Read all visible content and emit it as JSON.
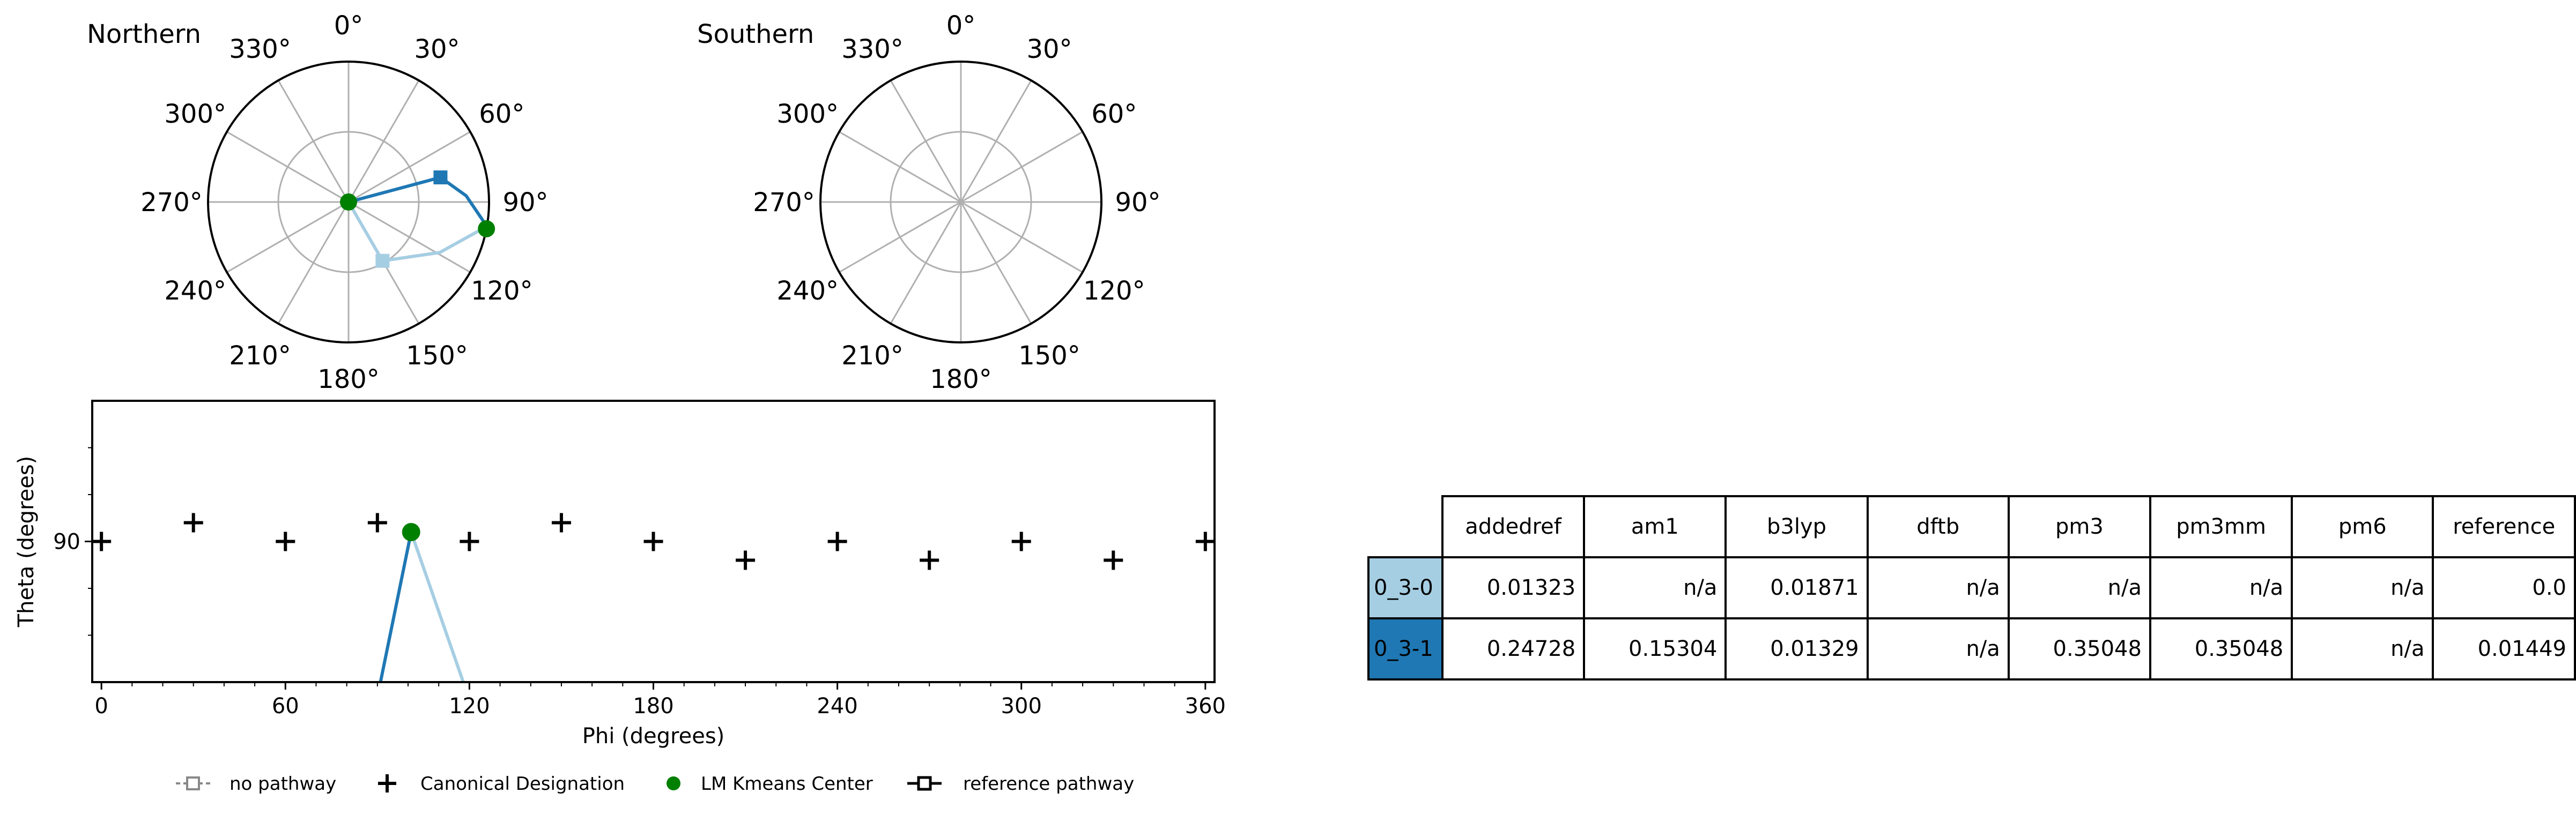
{
  "polar_plots": [
    {
      "title": "Northern",
      "angle_labels": [
        "0°",
        "30°",
        "60°",
        "90°",
        "120°",
        "150°",
        "180°",
        "210°",
        "240°",
        "270°",
        "300°",
        "330°"
      ]
    },
    {
      "title": "Southern",
      "angle_labels": [
        "0°",
        "30°",
        "60°",
        "90°",
        "120°",
        "150°",
        "180°",
        "210°",
        "240°",
        "270°",
        "300°",
        "330°"
      ]
    }
  ],
  "chart_data": [
    {
      "type": "scatter",
      "title": "Northern",
      "projection": "polar",
      "angle_unit": "degrees",
      "series": [
        {
          "name": "0_3-0",
          "color": "#a6cee3",
          "points": [
            {
              "phi": 100,
              "theta": 0
            },
            {
              "phi": 150,
              "theta": 30
            },
            {
              "phi": 119,
              "theta": 46
            },
            {
              "phi": 100,
              "theta": 62
            }
          ]
        },
        {
          "name": "0_3-1",
          "color": "#1f78b4",
          "points": [
            {
              "phi": 100,
              "theta": 0
            },
            {
              "phi": 75,
              "theta": 42
            },
            {
              "phi": 87,
              "theta": 52
            },
            {
              "phi": 100,
              "theta": 62
            }
          ]
        },
        {
          "name": "LM Kmeans Center",
          "color": "#008000",
          "points": [
            {
              "phi": 0,
              "theta": 0
            },
            {
              "phi": 101,
              "theta": 62
            }
          ]
        }
      ]
    },
    {
      "type": "scatter",
      "title": "Southern",
      "projection": "polar",
      "angle_unit": "degrees",
      "series": []
    },
    {
      "type": "scatter",
      "xlabel": "Phi (degrees)",
      "ylabel": "Theta (degrees)",
      "xlim": [
        -3,
        363
      ],
      "ylim": [
        60,
        120
      ],
      "x_ticks": [
        "0",
        "60",
        "120",
        "180",
        "240",
        "300",
        "360"
      ],
      "y_ticks": [
        "90"
      ],
      "legend_position": "bottom",
      "series": [
        {
          "name": "Canonical Designation",
          "color": "#000000",
          "marker": "+",
          "points": [
            {
              "x": 0,
              "y": 90
            },
            {
              "x": 30,
              "y": 86
            },
            {
              "x": 60,
              "y": 90
            },
            {
              "x": 90,
              "y": 86
            },
            {
              "x": 120,
              "y": 90
            },
            {
              "x": 150,
              "y": 86
            },
            {
              "x": 180,
              "y": 90
            },
            {
              "x": 210,
              "y": 94
            },
            {
              "x": 240,
              "y": 90
            },
            {
              "x": 270,
              "y": 94
            },
            {
              "x": 300,
              "y": 90
            },
            {
              "x": 330,
              "y": 94
            },
            {
              "x": 360,
              "y": 90
            }
          ]
        },
        {
          "name": "LM Kmeans Center",
          "color": "#008000",
          "marker": "o",
          "points": [
            {
              "x": 101,
              "y": 88
            }
          ]
        },
        {
          "name": "0_3-0",
          "color": "#a6cee3",
          "points": [
            {
              "x": 101,
              "y": 88
            },
            {
              "x": 118,
              "y": 120
            }
          ]
        },
        {
          "name": "0_3-1",
          "color": "#1f78b4",
          "points": [
            {
              "x": 101,
              "y": 88
            },
            {
              "x": 91,
              "y": 120
            }
          ]
        }
      ]
    }
  ],
  "legend": [
    {
      "label": "no pathway",
      "marker": "dashed-square"
    },
    {
      "label": "Canonical Designation",
      "marker": "plus"
    },
    {
      "label": "LM Kmeans Center",
      "marker": "green-dot"
    },
    {
      "label": "reference pathway",
      "marker": "solid-square"
    }
  ],
  "table": {
    "columns": [
      "addedref",
      "am1",
      "b3lyp",
      "dftb",
      "pm3",
      "pm3mm",
      "pm6",
      "reference"
    ],
    "rows": [
      {
        "label": "0_3-0",
        "color": "#a6cee3",
        "values": [
          "0.01323",
          "n/a",
          "0.01871",
          "n/a",
          "n/a",
          "n/a",
          "n/a",
          "0.0"
        ]
      },
      {
        "label": "0_3-1",
        "color": "#1f78b4",
        "values": [
          "0.24728",
          "0.15304",
          "0.01329",
          "n/a",
          "0.35048",
          "0.35048",
          "n/a",
          "0.01449"
        ]
      }
    ]
  }
}
